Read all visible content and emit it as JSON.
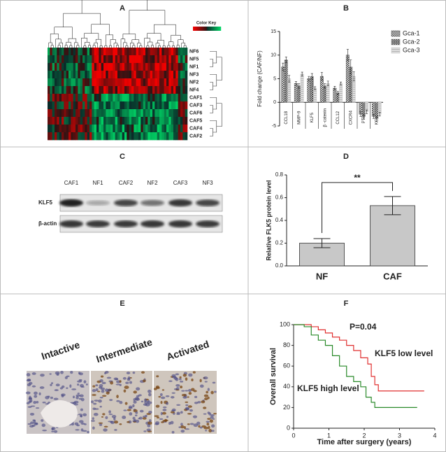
{
  "panels": [
    "A",
    "B",
    "C",
    "D",
    "E",
    "F"
  ],
  "heatmap": {
    "color_key": "Color Key",
    "rows": [
      "NF6",
      "NF5",
      "NF1",
      "NF3",
      "NF2",
      "NF4",
      "CAF1",
      "CAF3",
      "CAF6",
      "CAF5",
      "CAF4",
      "CAF2"
    ]
  },
  "blot": {
    "lanes": [
      "CAF1",
      "NF1",
      "CAF2",
      "NF2",
      "CAF3",
      "NF3"
    ],
    "proteins": [
      "KLF5",
      "β-actin"
    ]
  },
  "ihc": {
    "labels": [
      "Intactive",
      "Intermediate",
      "Activated"
    ]
  },
  "chart_data": [
    {
      "type": "bar",
      "y_label": "Fold change (CAF/NF)",
      "categories": [
        "CCL18",
        "MMP-9",
        "KLF5",
        "β -catenin",
        "CCL12",
        "CXCR4",
        "PTEN",
        "KCND3"
      ],
      "series": [
        {
          "name": "Gca-1",
          "color": "#555555",
          "values": [
            7.5,
            4,
            5,
            5.5,
            3,
            10,
            -2.5,
            -3
          ],
          "errors": [
            0.8,
            0.4,
            0.5,
            0.8,
            0.4,
            1.2,
            0.5,
            0.4
          ]
        },
        {
          "name": "Gca-2",
          "color": "#888888",
          "values": [
            9,
            3.5,
            5.5,
            3.5,
            2,
            7.5,
            -3,
            -3.5
          ],
          "errors": [
            0.6,
            0.5,
            0.6,
            0.5,
            0.3,
            1.5,
            0.5,
            0.5
          ]
        },
        {
          "name": "Gca-3",
          "color": "#c8c8c8",
          "values": [
            5,
            6,
            3,
            4,
            4,
            5.5,
            -2,
            -2.5
          ],
          "errors": [
            0.7,
            0.4,
            0.3,
            0.5,
            0.3,
            1.0,
            0.4,
            0.4
          ]
        }
      ],
      "ylim": [
        -5,
        15
      ],
      "yticks": [
        -5,
        0,
        5,
        10,
        15
      ],
      "legend": "top-right"
    },
    {
      "type": "bar",
      "y_label": "Relative FLK5 protein level",
      "categories": [
        "NF",
        "CAF"
      ],
      "values": [
        0.2,
        0.53
      ],
      "errors": [
        0.04,
        0.08
      ],
      "color": "#c8c8c8",
      "ylim": [
        0,
        0.8
      ],
      "yticks": [
        {
          "value": 0,
          "label": "0.0"
        },
        0.2,
        0.4,
        0.6,
        0.8
      ],
      "annotation": "**"
    },
    {
      "type": "line",
      "step": true,
      "x_label": "Time after surgery (years)",
      "y_label": "Overall survival",
      "annotation": "P=0.04",
      "series": [
        {
          "name": "KLF5 low level",
          "color": "#e03030",
          "x": [
            0,
            0.3,
            0.5,
            0.7,
            0.9,
            1.1,
            1.3,
            1.5,
            1.7,
            1.9,
            2.1,
            2.2,
            2.3,
            2.4,
            3.7
          ],
          "values": [
            100,
            100,
            98,
            95,
            92,
            88,
            85,
            80,
            75,
            68,
            62,
            50,
            42,
            36,
            36
          ]
        },
        {
          "name": "KLF5 high level",
          "color": "#2a8a2a",
          "x": [
            0,
            0.3,
            0.5,
            0.7,
            0.9,
            1.1,
            1.3,
            1.5,
            1.7,
            1.9,
            2.05,
            2.2,
            2.3,
            3.5
          ],
          "values": [
            100,
            98,
            90,
            85,
            80,
            70,
            60,
            50,
            45,
            40,
            30,
            25,
            20,
            20
          ]
        }
      ],
      "xlim": [
        0,
        4
      ],
      "xticks": [
        0,
        1,
        2,
        3,
        4
      ],
      "ylim": [
        0,
        100
      ],
      "yticks": [
        0,
        20,
        40,
        60,
        80,
        100
      ]
    }
  ]
}
